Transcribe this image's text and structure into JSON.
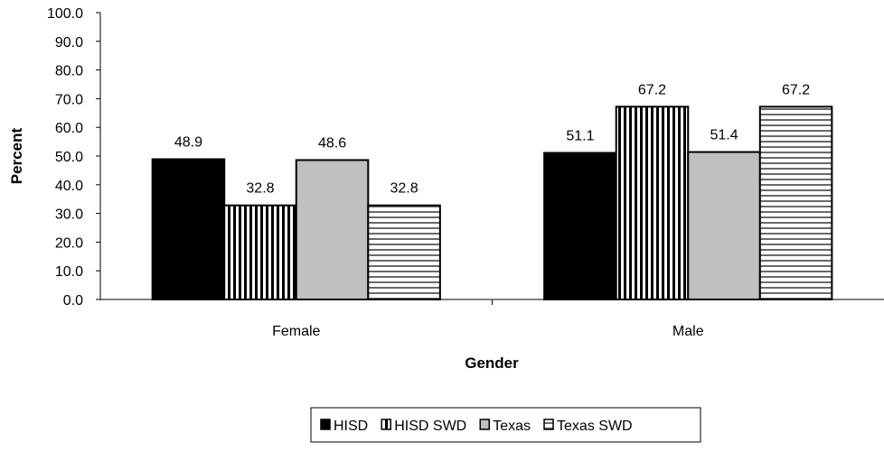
{
  "chart_data": {
    "type": "bar",
    "xlabel": "Gender",
    "ylabel": "Percent",
    "ylim": [
      0,
      100
    ],
    "ytick_step": 10,
    "ytick_labels": [
      "0.0",
      "10.0",
      "20.0",
      "30.0",
      "40.0",
      "50.0",
      "60.0",
      "70.0",
      "80.0",
      "90.0",
      "100.0"
    ],
    "categories": [
      "Female",
      "Male"
    ],
    "series": [
      {
        "name": "HISD",
        "values": [
          48.9,
          51.1
        ],
        "value_labels": [
          "48.9",
          "51.1"
        ],
        "fill": "#000000",
        "pattern": "solid"
      },
      {
        "name": "HISD SWD",
        "values": [
          32.8,
          67.2
        ],
        "value_labels": [
          "32.8",
          "67.2"
        ],
        "fill": "#ffffff",
        "pattern": "vertical-stripes"
      },
      {
        "name": "Texas",
        "values": [
          48.6,
          51.4
        ],
        "value_labels": [
          "48.6",
          "51.4"
        ],
        "fill": "#c0c0c0",
        "pattern": "solid"
      },
      {
        "name": "Texas SWD",
        "values": [
          32.8,
          67.2
        ],
        "value_labels": [
          "32.8",
          "67.2"
        ],
        "fill": "#ffffff",
        "pattern": "horizontal-stripes"
      }
    ],
    "grid": false,
    "legend": "bottom"
  }
}
